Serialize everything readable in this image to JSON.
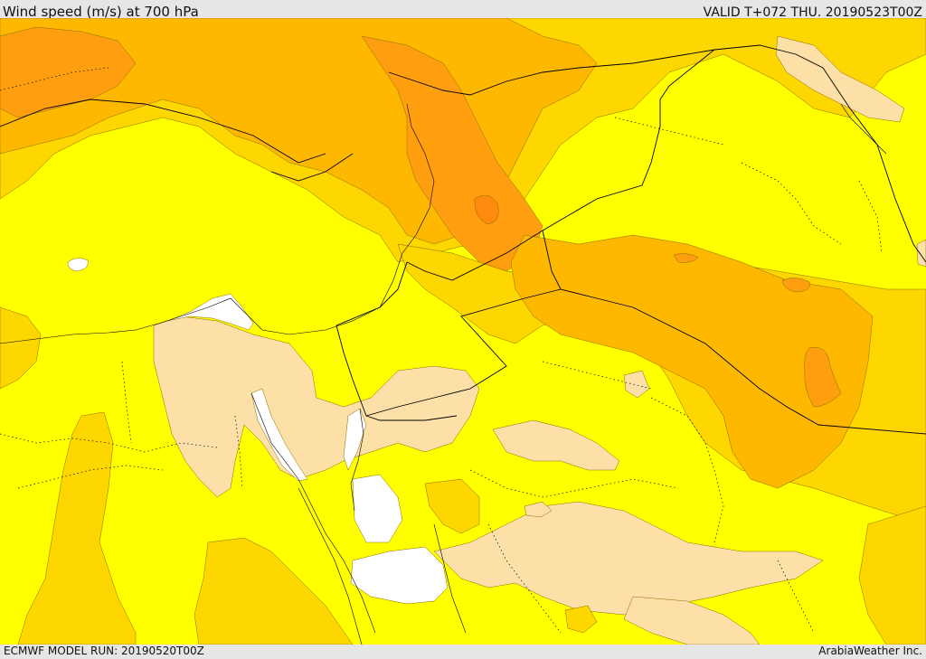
{
  "header": {
    "title": "Wind speed (m/s) at 700 hPa",
    "valid": "VALID T+072 THU. 20190523T00Z"
  },
  "footer": {
    "model_run": "ECMWF MODEL RUN: 20190520T00Z",
    "credit": "ArabiaWeather Inc."
  },
  "map": {
    "colors": {
      "bin_0_5": "#ffffff",
      "bin_5_10": "#fde0a8",
      "bin_10_15": "#ffff00",
      "bin_15_20": "#ffd700",
      "bin_20_25": "#ffb800",
      "bin_25_30": "#ff9f10",
      "bin_30_35": "#ff8a10",
      "boundary": "#000000",
      "contour": "#8a6a00"
    }
  }
}
